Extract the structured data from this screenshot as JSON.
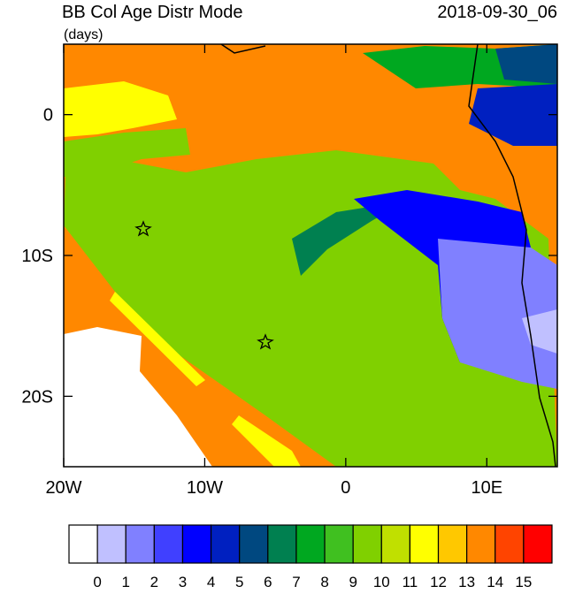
{
  "header": {
    "title": "BB Col Age Distr Mode",
    "units": "(days)",
    "date": "2018-09-30_06"
  },
  "map": {
    "lon_range": [
      -20,
      15
    ],
    "lat_range": [
      -25,
      5
    ],
    "x_ticks": [
      {
        "value": -20,
        "label": "20W"
      },
      {
        "value": -10,
        "label": "10W"
      },
      {
        "value": 0,
        "label": "0"
      },
      {
        "value": 10,
        "label": "10E"
      }
    ],
    "y_ticks": [
      {
        "value": 0,
        "label": "0"
      },
      {
        "value": -10,
        "label": "10S"
      },
      {
        "value": -20,
        "label": "20S"
      }
    ]
  },
  "colorbar": {
    "colors": [
      "#ffffff",
      "#c0c0ff",
      "#8080ff",
      "#4040ff",
      "#0000ff",
      "#0020c0",
      "#004880",
      "#008050",
      "#00a820",
      "#40c020",
      "#80d000",
      "#c0e000",
      "#ffff00",
      "#ffc800",
      "#ff8800",
      "#ff4400",
      "#ff0000"
    ],
    "labels": [
      "0",
      "1",
      "2",
      "3",
      "4",
      "5",
      "6",
      "7",
      "8",
      "9",
      "10",
      "11",
      "12",
      "13",
      "14",
      "15"
    ]
  }
}
